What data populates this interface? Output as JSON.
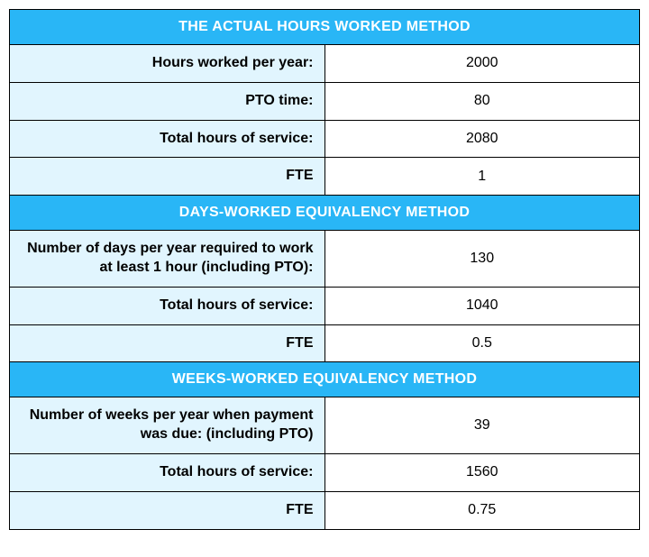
{
  "colors": {
    "header_bg": "#29b6f6",
    "header_text": "#ffffff",
    "label_bg": "#e1f5fe",
    "value_bg": "#ffffff",
    "border": "#000000",
    "text": "#000000"
  },
  "table": {
    "columns": [
      "label",
      "value"
    ],
    "col_widths_pct": [
      50,
      50
    ],
    "label_fontweight": "bold",
    "label_align": "right",
    "value_align": "center",
    "header_fontsize": 16,
    "cell_fontsize": 16,
    "sections": [
      {
        "title": "THE ACTUAL HOURS WORKED METHOD",
        "rows": [
          {
            "label": "Hours worked per year:",
            "value": "2000"
          },
          {
            "label": "PTO time:",
            "value": "80"
          },
          {
            "label": "Total hours of service:",
            "value": "2080"
          },
          {
            "label": "FTE",
            "value": "1"
          }
        ]
      },
      {
        "title": "DAYS-WORKED EQUIVALENCY METHOD",
        "rows": [
          {
            "label": "Number of days per year required to work at least 1 hour (including PTO):",
            "value": "130"
          },
          {
            "label": "Total hours of service:",
            "value": "1040"
          },
          {
            "label": "FTE",
            "value": "0.5"
          }
        ]
      },
      {
        "title": "WEEKS-WORKED EQUIVALENCY METHOD",
        "rows": [
          {
            "label": "Number of weeks per year when payment was due: (including PTO)",
            "value": "39"
          },
          {
            "label": "Total hours of service:",
            "value": "1560"
          },
          {
            "label": "FTE",
            "value": "0.75"
          }
        ]
      }
    ]
  }
}
